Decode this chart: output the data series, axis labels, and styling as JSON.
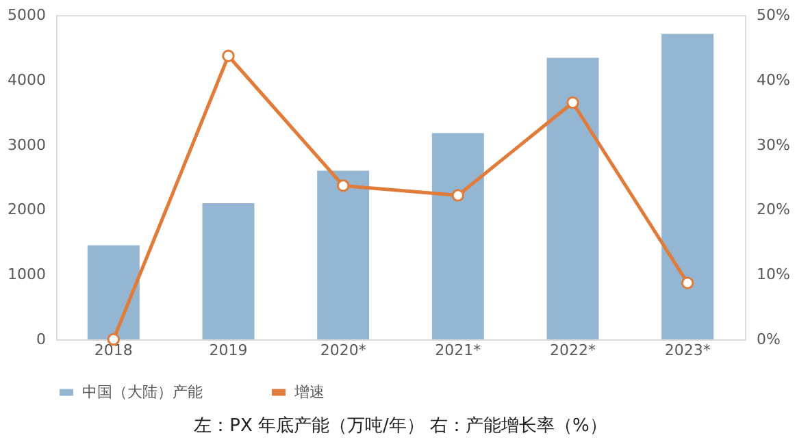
{
  "chart_data": {
    "type": "bar",
    "categories": [
      "2018",
      "2019",
      "2020*",
      "2021*",
      "2022*",
      "2023*"
    ],
    "series": [
      {
        "name": "中国（大陆）产能",
        "color": "#94b6d2",
        "values": [
          1450,
          2100,
          2600,
          3180,
          4340,
          4710
        ]
      },
      {
        "name": "增速",
        "type": "line",
        "axis": "y2",
        "color": "#e07b39",
        "values": [
          0,
          43.7,
          23.7,
          22.2,
          36.5,
          8.7
        ]
      }
    ],
    "ylim": [
      0,
      5000
    ],
    "yticks": [
      0,
      1000,
      2000,
      3000,
      4000,
      5000
    ],
    "y2lim": [
      0,
      50
    ],
    "y2ticks": [
      {
        "value": 0,
        "label": "0%"
      },
      {
        "value": 10,
        "label": "10%"
      },
      {
        "value": 20,
        "label": "20%"
      },
      {
        "value": 30,
        "label": "30%"
      },
      {
        "value": 40,
        "label": "40%"
      },
      {
        "value": 50,
        "label": "50%"
      }
    ],
    "grid": false,
    "legend": "bottom",
    "marker": "circle",
    "line_style": "solid",
    "annotations": [
      "左：PX 年底产能（万吨/年） 右：产能增长率（%）"
    ]
  }
}
